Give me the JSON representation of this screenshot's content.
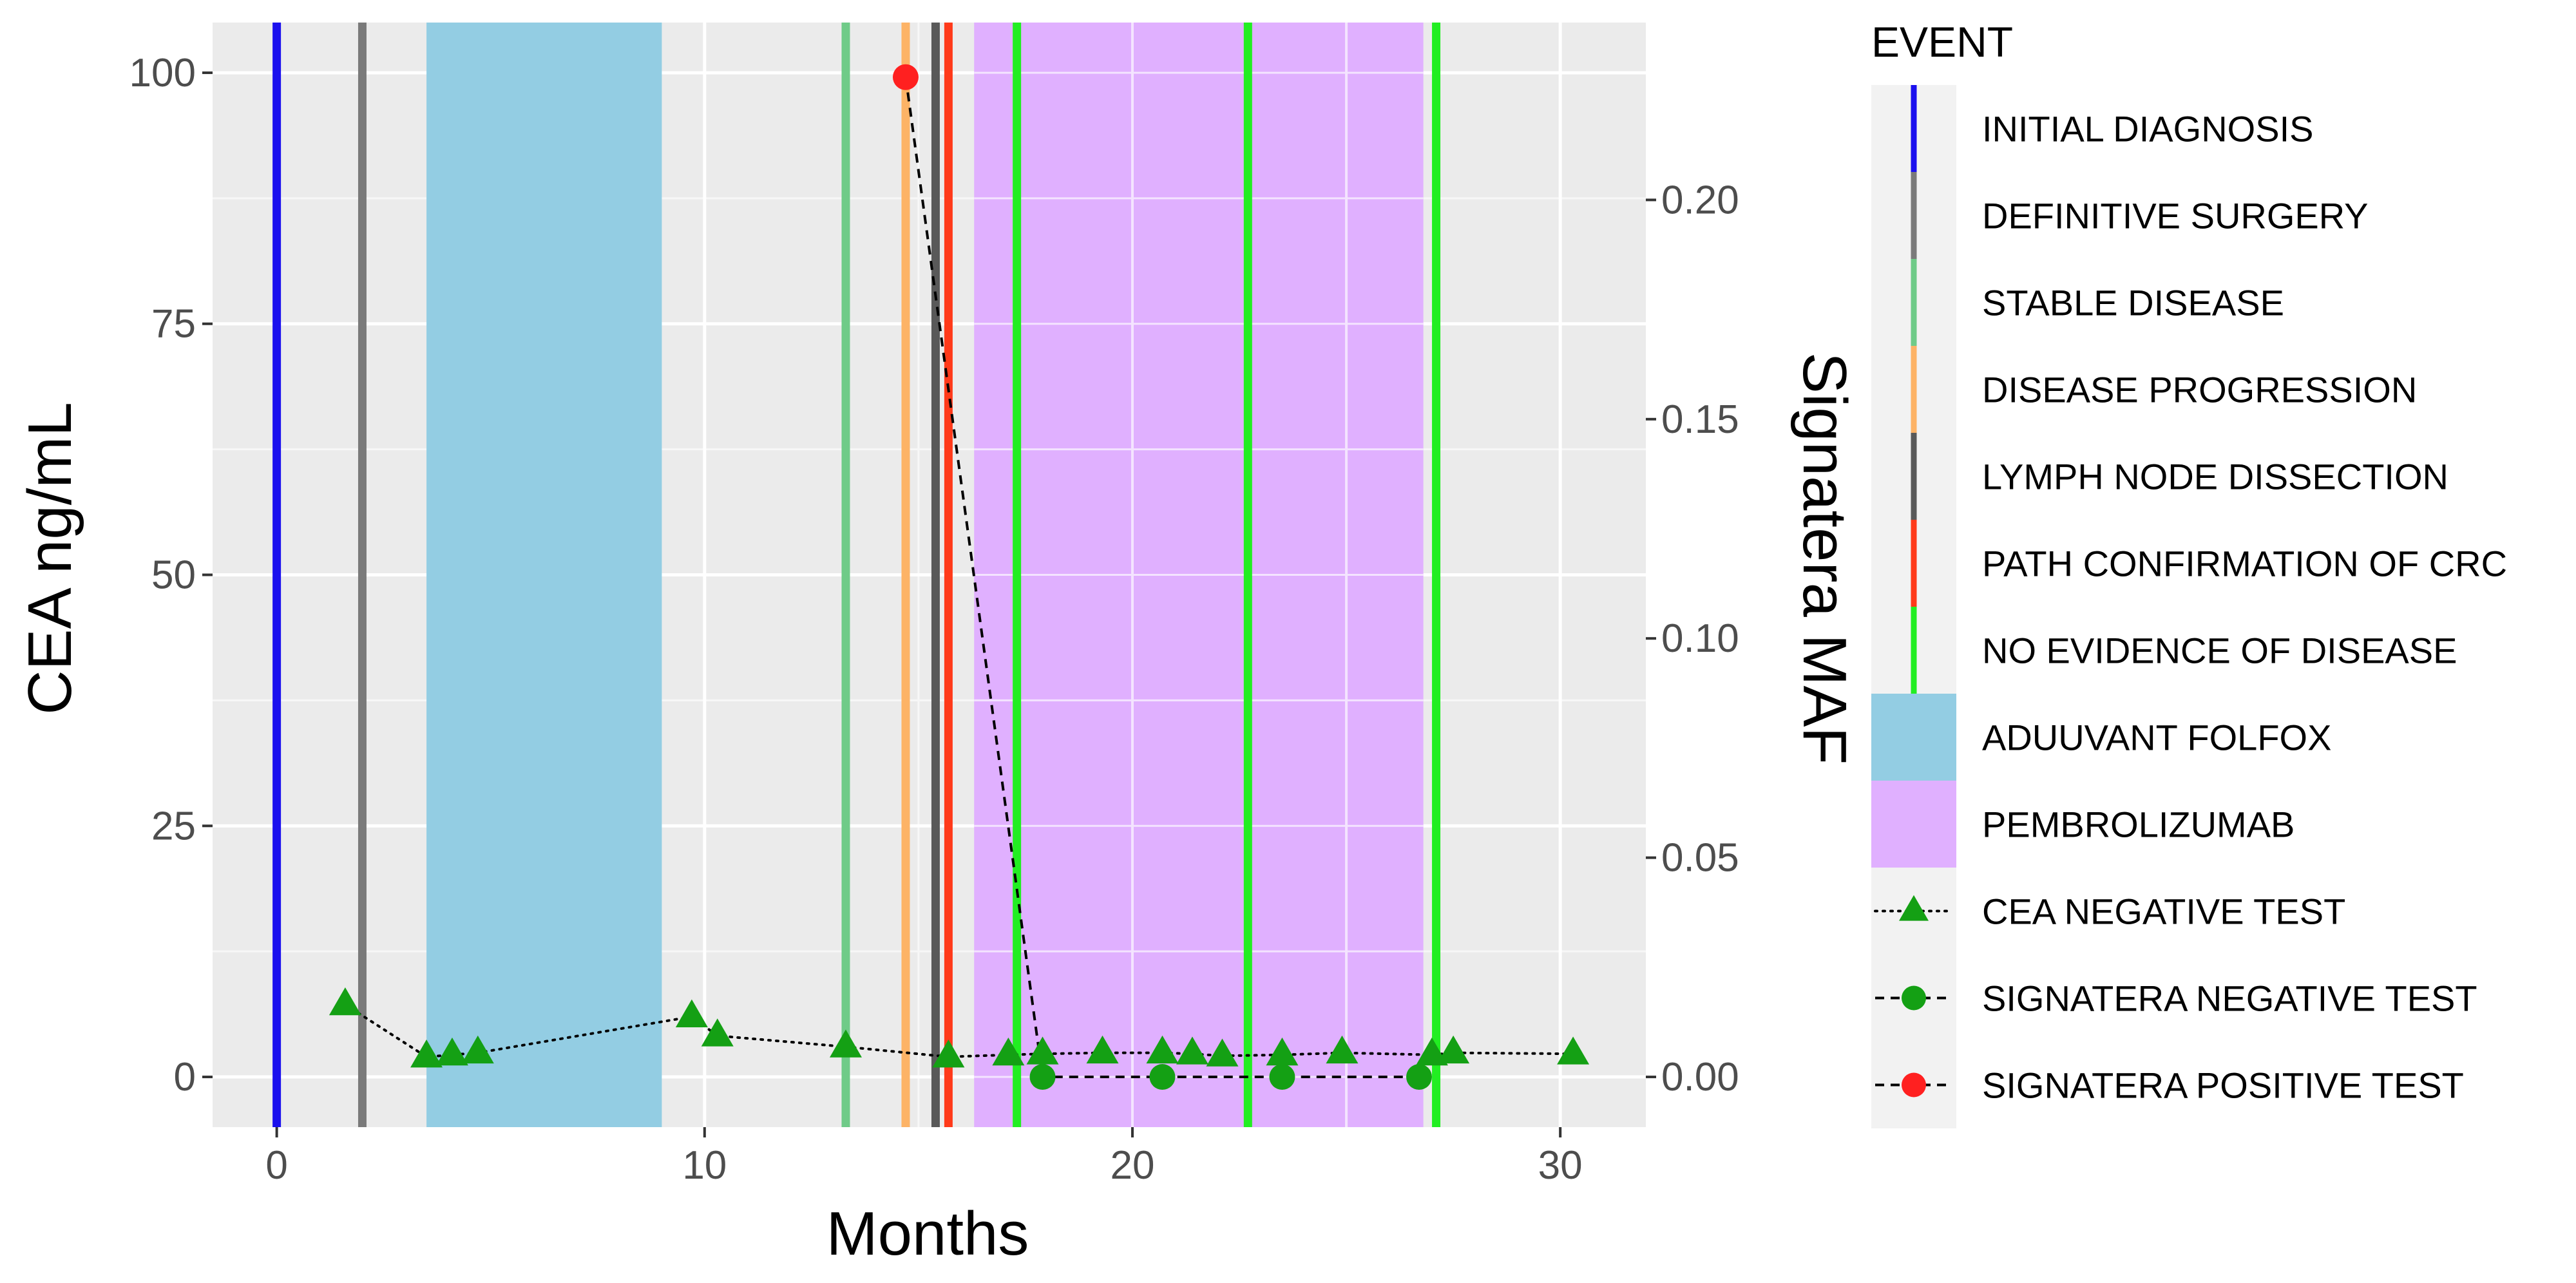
{
  "chart_data": {
    "type": "line",
    "x_axis": {
      "label": "Months",
      "range": [
        -1.5,
        32
      ],
      "ticks": [
        0,
        10,
        20,
        30
      ]
    },
    "y_left_axis": {
      "label": "CEA ng/mL",
      "range": [
        -5,
        105
      ],
      "ticks": [
        0,
        25,
        50,
        75,
        100
      ]
    },
    "y_right_axis": {
      "label": "Signatera MAF",
      "ticks": [
        0.0,
        0.05,
        0.1,
        0.15,
        0.2
      ],
      "tick_labels": [
        "0.00",
        "0.05",
        "0.10",
        "0.15",
        "0.20"
      ]
    },
    "secondary_scale": {
      "maf_per_cea": 0.00229
    },
    "shaded_periods": [
      {
        "name": "ADUUVANT FOLFOX",
        "start": 3.5,
        "end": 9.0,
        "color": "#93CDE3"
      },
      {
        "name": "PEMBROLIZUMAB",
        "start": 16.3,
        "end": 26.8,
        "color": "#E0B0FF"
      }
    ],
    "events": [
      {
        "name": "INITIAL DIAGNOSIS",
        "x": 0.0,
        "color": "#1B10EE"
      },
      {
        "name": "DEFINITIVE SURGERY",
        "x": 2.0,
        "color": "#7A7A7A"
      },
      {
        "name": "STABLE DISEASE",
        "x": 13.3,
        "color": "#6FCB88"
      },
      {
        "name": "DISEASE PROGRESSION",
        "x": 14.7,
        "color": "#FDB366"
      },
      {
        "name": "LYMPH NODE DISSECTION",
        "x": 15.4,
        "color": "#595959"
      },
      {
        "name": "PATH CONFIRMATION OF CRC",
        "x": 15.7,
        "color": "#FF3A1A"
      },
      {
        "name": "NO EVIDENCE OF DISEASE",
        "x": 17.3,
        "color": "#22EE22"
      },
      {
        "name": "NO EVIDENCE OF DISEASE",
        "x": 22.7,
        "color": "#22EE22"
      },
      {
        "name": "NO EVIDENCE OF DISEASE",
        "x": 27.1,
        "color": "#22EE22"
      }
    ],
    "series": [
      {
        "name": "CEA NEGATIVE TEST",
        "marker": "triangle",
        "line": "dotted",
        "color": "#14A014",
        "points": [
          {
            "x": 1.6,
            "y": 7.2
          },
          {
            "x": 3.5,
            "y": 2.0
          },
          {
            "x": 4.1,
            "y": 2.2
          },
          {
            "x": 4.7,
            "y": 2.4
          },
          {
            "x": 9.7,
            "y": 6.0
          },
          {
            "x": 10.3,
            "y": 4.1
          },
          {
            "x": 13.3,
            "y": 3.0
          },
          {
            "x": 15.7,
            "y": 2.0
          },
          {
            "x": 17.1,
            "y": 2.2
          },
          {
            "x": 17.9,
            "y": 2.3
          },
          {
            "x": 19.3,
            "y": 2.4
          },
          {
            "x": 20.7,
            "y": 2.4
          },
          {
            "x": 21.4,
            "y": 2.3
          },
          {
            "x": 22.1,
            "y": 2.1
          },
          {
            "x": 23.5,
            "y": 2.2
          },
          {
            "x": 24.9,
            "y": 2.4
          },
          {
            "x": 27.0,
            "y": 2.2
          },
          {
            "x": 27.5,
            "y": 2.4
          },
          {
            "x": 30.3,
            "y": 2.3
          }
        ]
      },
      {
        "name": "SIGNATERA NEGATIVE TEST",
        "marker": "circle",
        "line": "dashed",
        "color": "#14A014",
        "points": [
          {
            "x": 17.9,
            "y": 0.0
          },
          {
            "x": 20.7,
            "y": 0.0
          },
          {
            "x": 23.5,
            "y": 0.0
          },
          {
            "x": 26.7,
            "y": 0.0
          }
        ]
      },
      {
        "name": "SIGNATERA POSITIVE TEST",
        "marker": "circle",
        "line": "dashed",
        "color": "#FF2020",
        "points": [
          {
            "x": 14.7,
            "y": 0.228
          }
        ]
      }
    ],
    "signatera_line": [
      {
        "x": 14.7,
        "y": 0.228
      },
      {
        "x": 17.9,
        "y": 0.0
      },
      {
        "x": 20.7,
        "y": 0.0
      },
      {
        "x": 23.5,
        "y": 0.0
      },
      {
        "x": 26.7,
        "y": 0.0
      }
    ],
    "legend": {
      "title": "EVENT",
      "position": "right",
      "items": [
        {
          "label": "INITIAL DIAGNOSIS",
          "kind": "vline",
          "color": "#1B10EE"
        },
        {
          "label": "DEFINITIVE SURGERY",
          "kind": "vline",
          "color": "#7A7A7A"
        },
        {
          "label": "STABLE DISEASE",
          "kind": "vline",
          "color": "#6FCB88"
        },
        {
          "label": "DISEASE PROGRESSION",
          "kind": "vline",
          "color": "#FDB366"
        },
        {
          "label": "LYMPH NODE DISSECTION",
          "kind": "vline",
          "color": "#595959"
        },
        {
          "label": "PATH CONFIRMATION OF CRC",
          "kind": "vline",
          "color": "#FF3A1A"
        },
        {
          "label": "NO EVIDENCE OF DISEASE",
          "kind": "vline",
          "color": "#22EE22"
        },
        {
          "label": "ADUUVANT FOLFOX",
          "kind": "fill",
          "color": "#93CDE3"
        },
        {
          "label": "PEMBROLIZUMAB",
          "kind": "fill",
          "color": "#E0B0FF"
        },
        {
          "label": "CEA NEGATIVE TEST",
          "kind": "triangle-dotted",
          "color": "#14A014"
        },
        {
          "label": "SIGNATERA NEGATIVE TEST",
          "kind": "circle-dashed",
          "color": "#14A014"
        },
        {
          "label": "SIGNATERA POSITIVE TEST",
          "kind": "circle-dashed",
          "color": "#FF2020"
        }
      ]
    }
  }
}
